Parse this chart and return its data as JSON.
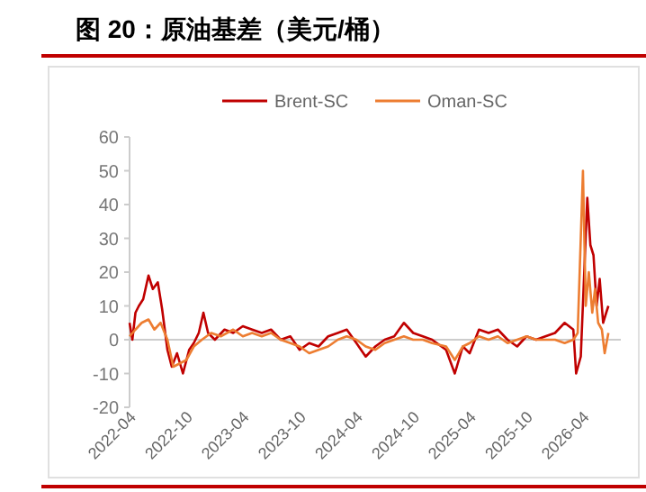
{
  "chart_data": {
    "type": "line",
    "title": "图 20：原油基差（美元/桶）",
    "xlim": [
      "2022-04-01",
      "2026-08-01"
    ],
    "xticks": [
      {
        "value": "2022-04-01",
        "label": "2022-04"
      },
      {
        "value": "2022-10-01",
        "label": "2022-10"
      },
      {
        "value": "2023-04-01",
        "label": "2023-04"
      },
      {
        "value": "2023-10-01",
        "label": "2023-10"
      },
      {
        "value": "2024-04-01",
        "label": "2024-04"
      },
      {
        "value": "2024-10-01",
        "label": "2024-10"
      },
      {
        "value": "2025-04-01",
        "label": "2025-04"
      },
      {
        "value": "2025-10-01",
        "label": "2025-10"
      },
      {
        "value": "2026-04-01",
        "label": "2026-04"
      }
    ],
    "ylim": [
      -20,
      60
    ],
    "yticks": [
      -20,
      -10,
      0,
      10,
      20,
      30,
      40,
      50,
      60
    ],
    "legend": "top",
    "ref_lines": [
      {
        "axis": "y",
        "value": 0,
        "color": "#cccccc"
      }
    ],
    "series": [
      {
        "name": "Brent-SC",
        "color": "#c00000",
        "x": [
          "2022-04-01",
          "2022-04-10",
          "2022-04-20",
          "2022-05-01",
          "2022-05-15",
          "2022-06-01",
          "2022-06-15",
          "2022-07-01",
          "2022-07-15",
          "2022-08-01",
          "2022-08-15",
          "2022-09-01",
          "2022-09-20",
          "2022-10-10",
          "2022-10-25",
          "2022-11-10",
          "2022-11-25",
          "2022-12-10",
          "2023-01-01",
          "2023-02-01",
          "2023-03-01",
          "2023-04-01",
          "2023-05-01",
          "2023-06-01",
          "2023-07-01",
          "2023-08-01",
          "2023-09-01",
          "2023-10-01",
          "2023-11-01",
          "2023-12-01",
          "2024-01-01",
          "2024-02-01",
          "2024-03-01",
          "2024-04-01",
          "2024-05-01",
          "2024-06-01",
          "2024-07-01",
          "2024-08-01",
          "2024-09-01",
          "2024-10-01",
          "2024-11-01",
          "2024-12-01",
          "2025-01-15",
          "2025-02-12",
          "2025-03-10",
          "2025-04-01",
          "2025-05-01",
          "2025-06-01",
          "2025-07-01",
          "2025-08-01",
          "2025-09-01",
          "2025-10-01",
          "2025-11-01",
          "2025-12-01",
          "2026-01-01",
          "2026-02-01",
          "2026-03-01",
          "2026-03-10",
          "2026-03-25",
          "2026-04-15",
          "2026-04-25",
          "2026-05-05",
          "2026-05-15",
          "2026-05-25",
          "2026-06-05",
          "2026-06-15",
          "2026-06-22"
        ],
        "values": [
          5,
          0,
          8,
          10,
          12,
          19,
          15,
          17,
          9,
          -3,
          -8,
          -4,
          -10,
          -3,
          -1,
          2,
          8,
          2,
          0,
          3,
          2,
          4,
          3,
          2,
          3,
          0,
          1,
          -3,
          -1,
          -2,
          1,
          2,
          3,
          -1,
          -5,
          -2,
          0,
          1,
          5,
          2,
          1,
          0,
          -3,
          -10,
          -2,
          -4,
          3,
          2,
          3,
          0,
          -2,
          1,
          0,
          1,
          2,
          5,
          3,
          -10,
          -5,
          42,
          28,
          25,
          10,
          18,
          5,
          8,
          10
        ]
      },
      {
        "name": "Oman-SC",
        "color": "#ed7d31",
        "x": [
          "2022-04-01",
          "2022-04-20",
          "2022-05-10",
          "2022-06-01",
          "2022-06-20",
          "2022-07-10",
          "2022-08-01",
          "2022-08-20",
          "2022-09-10",
          "2022-10-01",
          "2022-10-25",
          "2022-11-20",
          "2022-12-20",
          "2023-01-20",
          "2023-03-01",
          "2023-04-01",
          "2023-05-01",
          "2023-06-01",
          "2023-07-01",
          "2023-08-01",
          "2023-09-01",
          "2023-10-01",
          "2023-11-01",
          "2023-12-01",
          "2024-01-01",
          "2024-02-01",
          "2024-03-01",
          "2024-04-01",
          "2024-05-01",
          "2024-06-01",
          "2024-07-01",
          "2024-08-01",
          "2024-09-01",
          "2024-10-01",
          "2024-11-01",
          "2024-12-01",
          "2025-01-15",
          "2025-02-12",
          "2025-03-10",
          "2025-04-01",
          "2025-05-01",
          "2025-06-01",
          "2025-07-01",
          "2025-08-01",
          "2025-09-01",
          "2025-10-01",
          "2025-11-01",
          "2025-12-01",
          "2026-01-01",
          "2026-02-01",
          "2026-03-01",
          "2026-03-15",
          "2026-03-25",
          "2026-04-01",
          "2026-04-10",
          "2026-04-20",
          "2026-05-01",
          "2026-05-10",
          "2026-05-20",
          "2026-06-01",
          "2026-06-10",
          "2026-06-22"
        ],
        "values": [
          1,
          3,
          5,
          6,
          3,
          5,
          0,
          -8,
          -7,
          -6,
          -2,
          0,
          2,
          1,
          3,
          1,
          2,
          1,
          2,
          0,
          -1,
          -2,
          -4,
          -3,
          -2,
          0,
          1,
          0,
          -2,
          -3,
          -1,
          0,
          1,
          0,
          0,
          -1,
          -2,
          -6,
          -2,
          -1,
          1,
          0,
          1,
          -1,
          0,
          1,
          0,
          0,
          0,
          -1,
          0,
          2,
          30,
          50,
          10,
          20,
          8,
          15,
          5,
          3,
          -4,
          2
        ]
      }
    ]
  }
}
